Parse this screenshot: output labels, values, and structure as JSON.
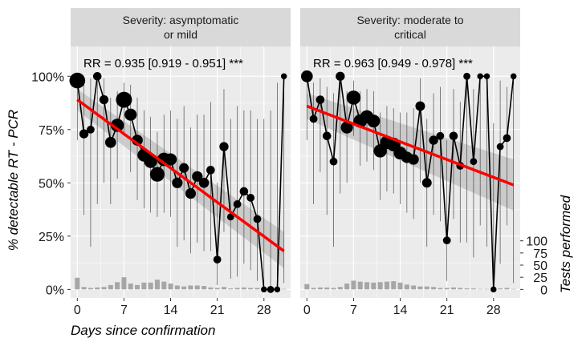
{
  "chart_data": {
    "type": "line",
    "xlabel": "Days since confirmation",
    "ylabel_left": "% detectable RT - PCR",
    "ylabel_right": "Tests performed",
    "x_ticks": [
      0,
      7,
      14,
      21,
      28
    ],
    "y_left_ticks": [
      "0%",
      "25%",
      "50%",
      "75%",
      "100%"
    ],
    "y_left_tick_values": [
      0,
      25,
      50,
      75,
      100
    ],
    "y_right_ticks": [
      0,
      25,
      50,
      75,
      100
    ],
    "xlim": [
      -1,
      32
    ],
    "ylim": [
      -4,
      114
    ],
    "tests_scale": 0.228,
    "colors": {
      "panel_bg": "#ebebeb",
      "strip_bg": "#d9d9d9",
      "grid": "#ffffff",
      "line": "#000000",
      "point": "#000000",
      "trend": "#ff0000",
      "ribbon": "#bfbfbf",
      "bar": "#a6a6a6"
    },
    "panels": [
      {
        "strip_line1": "Severity: asymptomatic",
        "strip_line2": "or mild",
        "annotation": "RR = 0.935 [0.919 - 0.951] ***",
        "trend": {
          "start": 89,
          "end": 18,
          "band_start": [
            84,
            94
          ],
          "band_end": [
            10,
            27
          ]
        },
        "points": [
          {
            "x": 0,
            "y": 98,
            "n": 24,
            "ci": [
              70,
              100
            ]
          },
          {
            "x": 1,
            "y": 73,
            "n": 5,
            "ci": [
              35,
              97
            ]
          },
          {
            "x": 2,
            "y": 75,
            "n": 3,
            "ci": [
              20,
              99
            ]
          },
          {
            "x": 3,
            "y": 100,
            "n": 4,
            "ci": [
              40,
              100
            ]
          },
          {
            "x": 4,
            "y": 89,
            "n": 5,
            "ci": [
              50,
              99
            ]
          },
          {
            "x": 5,
            "y": 69,
            "n": 9,
            "ci": [
              40,
              90
            ]
          },
          {
            "x": 6,
            "y": 77,
            "n": 15,
            "ci": [
              52,
              93
            ]
          },
          {
            "x": 7,
            "y": 89,
            "n": 25,
            "ci": [
              72,
              97
            ]
          },
          {
            "x": 8,
            "y": 82,
            "n": 12,
            "ci": [
              55,
              96
            ]
          },
          {
            "x": 9,
            "y": 70,
            "n": 9,
            "ci": [
              42,
              90
            ]
          },
          {
            "x": 10,
            "y": 63,
            "n": 14,
            "ci": [
              38,
              84
            ]
          },
          {
            "x": 11,
            "y": 60,
            "n": 14,
            "ci": [
              36,
              81
            ]
          },
          {
            "x": 12,
            "y": 54,
            "n": 20,
            "ci": [
              34,
              74
            ]
          },
          {
            "x": 13,
            "y": 61,
            "n": 16,
            "ci": [
              36,
              82
            ]
          },
          {
            "x": 14,
            "y": 61,
            "n": 12,
            "ci": [
              34,
              84
            ]
          },
          {
            "x": 15,
            "y": 50,
            "n": 8,
            "ci": [
              20,
              80
            ]
          },
          {
            "x": 16,
            "y": 57,
            "n": 6,
            "ci": [
              23,
              86
            ]
          },
          {
            "x": 17,
            "y": 45,
            "n": 8,
            "ci": [
              17,
              76
            ]
          },
          {
            "x": 18,
            "y": 53,
            "n": 8,
            "ci": [
              22,
              82
            ]
          },
          {
            "x": 19,
            "y": 50,
            "n": 7,
            "ci": [
              18,
              82
            ]
          },
          {
            "x": 20,
            "y": 56,
            "n": 4,
            "ci": [
              18,
              88
            ]
          },
          {
            "x": 21,
            "y": 14,
            "n": 3,
            "ci": [
              2,
              50
            ]
          },
          {
            "x": 22,
            "y": 67,
            "n": 5,
            "ci": [
              27,
              94
            ]
          },
          {
            "x": 23,
            "y": 34,
            "n": 2,
            "ci": [
              5,
              80
            ]
          },
          {
            "x": 24,
            "y": 40,
            "n": 3,
            "ci": [
              6,
              86
            ]
          },
          {
            "x": 25,
            "y": 46,
            "n": 4,
            "ci": [
              12,
              84
            ]
          },
          {
            "x": 26,
            "y": 43,
            "n": 3,
            "ci": [
              9,
              84
            ]
          },
          {
            "x": 27,
            "y": 33,
            "n": 3,
            "ci": [
              4,
              80
            ]
          },
          {
            "x": 28,
            "y": 0,
            "n": 1,
            "ci": [
              0,
              80
            ]
          },
          {
            "x": 29,
            "y": 0,
            "n": 2,
            "ci": [
              0,
              84
            ]
          },
          {
            "x": 30,
            "y": 0,
            "n": 1,
            "ci": [
              0,
              97
            ]
          },
          {
            "x": 31,
            "y": 100,
            "n": 1,
            "ci": [
              3,
              100
            ]
          }
        ]
      },
      {
        "strip_line1": "Severity: moderate to",
        "strip_line2": "critical",
        "annotation": "RR = 0.963 [0.949 - 0.978] ***",
        "trend": {
          "start": 86,
          "end": 49,
          "band_start": [
            80,
            92
          ],
          "band_end": [
            37,
            61
          ]
        },
        "points": [
          {
            "x": 0,
            "y": 100,
            "n": 11,
            "ci": [
              70,
              100
            ]
          },
          {
            "x": 1,
            "y": 80,
            "n": 3,
            "ci": [
              40,
              97
            ]
          },
          {
            "x": 2,
            "y": 89,
            "n": 4,
            "ci": [
              55,
              99
            ]
          },
          {
            "x": 3,
            "y": 72,
            "n": 4,
            "ci": [
              35,
              95
            ]
          },
          {
            "x": 4,
            "y": 60,
            "n": 3,
            "ci": [
              20,
              92
            ]
          },
          {
            "x": 5,
            "y": 100,
            "n": 5,
            "ci": [
              45,
              100
            ]
          },
          {
            "x": 6,
            "y": 76,
            "n": 12,
            "ci": [
              50,
              93
            ]
          },
          {
            "x": 7,
            "y": 90,
            "n": 18,
            "ci": [
              72,
              98
            ]
          },
          {
            "x": 8,
            "y": 79,
            "n": 16,
            "ci": [
              58,
              93
            ]
          },
          {
            "x": 9,
            "y": 81,
            "n": 15,
            "ci": [
              60,
              94
            ]
          },
          {
            "x": 10,
            "y": 79,
            "n": 14,
            "ci": [
              56,
              93
            ]
          },
          {
            "x": 11,
            "y": 65,
            "n": 15,
            "ci": [
              42,
              83
            ]
          },
          {
            "x": 12,
            "y": 69,
            "n": 16,
            "ci": [
              46,
              86
            ]
          },
          {
            "x": 13,
            "y": 68,
            "n": 17,
            "ci": [
              45,
              85
            ]
          },
          {
            "x": 14,
            "y": 64,
            "n": 14,
            "ci": [
              40,
              83
            ]
          },
          {
            "x": 15,
            "y": 62,
            "n": 10,
            "ci": [
              36,
              83
            ]
          },
          {
            "x": 16,
            "y": 61,
            "n": 8,
            "ci": [
              33,
              85
            ]
          },
          {
            "x": 17,
            "y": 86,
            "n": 6,
            "ci": [
              50,
              99
            ]
          },
          {
            "x": 18,
            "y": 50,
            "n": 6,
            "ci": [
              20,
              80
            ]
          },
          {
            "x": 19,
            "y": 70,
            "n": 5,
            "ci": [
              35,
              92
            ]
          },
          {
            "x": 20,
            "y": 72,
            "n": 3,
            "ci": [
              32,
              95
            ]
          },
          {
            "x": 21,
            "y": 23,
            "n": 3,
            "ci": [
              4,
              70
            ]
          },
          {
            "x": 22,
            "y": 72,
            "n": 4,
            "ci": [
              33,
              94
            ]
          },
          {
            "x": 23,
            "y": 58,
            "n": 3,
            "ci": [
              22,
              88
            ]
          },
          {
            "x": 24,
            "y": 100,
            "n": 2,
            "ci": [
              22,
              100
            ]
          },
          {
            "x": 25,
            "y": 60,
            "n": 2,
            "ci": [
              15,
              94
            ]
          },
          {
            "x": 26,
            "y": 100,
            "n": 1,
            "ci": [
              30,
              100
            ]
          },
          {
            "x": 27,
            "y": 100,
            "n": 1,
            "ci": [
              20,
              100
            ]
          },
          {
            "x": 28,
            "y": 0,
            "n": 1,
            "ci": [
              0,
              78
            ]
          },
          {
            "x": 29,
            "y": 67,
            "n": 2,
            "ci": [
              12,
              98
            ]
          },
          {
            "x": 30,
            "y": 71,
            "n": 3,
            "ci": [
              30,
              95
            ]
          },
          {
            "x": 31,
            "y": 100,
            "n": 1,
            "ci": [
              3,
              100
            ]
          }
        ]
      }
    ]
  }
}
